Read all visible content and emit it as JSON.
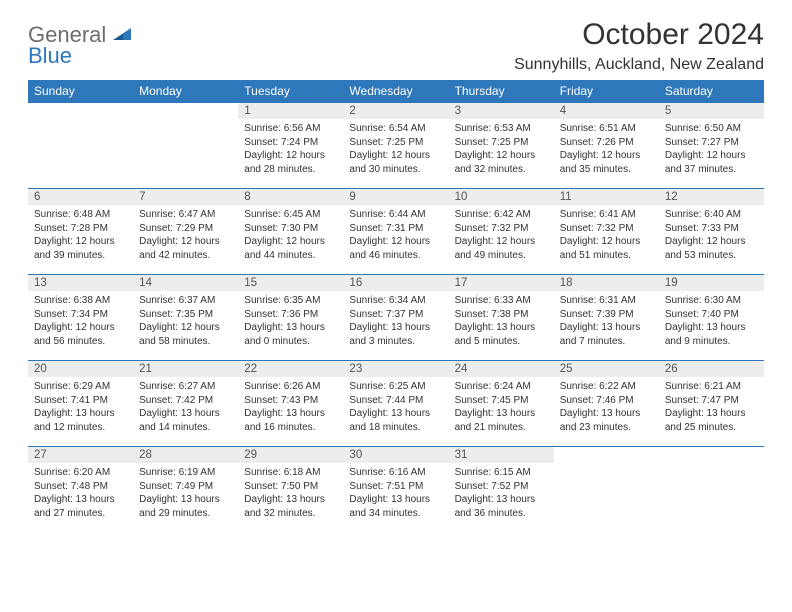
{
  "logo": {
    "general": "General",
    "blue": "Blue"
  },
  "title": "October 2024",
  "location": "Sunnyhills, Auckland, New Zealand",
  "colors": {
    "header_bg": "#2f77bb",
    "header_text": "#ffffff",
    "daynum_bg": "#ededed",
    "rule": "#2f77bb",
    "body_text": "#333333",
    "logo_gray": "#6d6d6d",
    "logo_blue": "#2f77bb",
    "page_bg": "#ffffff"
  },
  "columns": [
    "Sunday",
    "Monday",
    "Tuesday",
    "Wednesday",
    "Thursday",
    "Friday",
    "Saturday"
  ],
  "weeks": [
    [
      {
        "n": "",
        "lines": []
      },
      {
        "n": "",
        "lines": []
      },
      {
        "n": "1",
        "lines": [
          "Sunrise: 6:56 AM",
          "Sunset: 7:24 PM",
          "Daylight: 12 hours",
          "and 28 minutes."
        ]
      },
      {
        "n": "2",
        "lines": [
          "Sunrise: 6:54 AM",
          "Sunset: 7:25 PM",
          "Daylight: 12 hours",
          "and 30 minutes."
        ]
      },
      {
        "n": "3",
        "lines": [
          "Sunrise: 6:53 AM",
          "Sunset: 7:25 PM",
          "Daylight: 12 hours",
          "and 32 minutes."
        ]
      },
      {
        "n": "4",
        "lines": [
          "Sunrise: 6:51 AM",
          "Sunset: 7:26 PM",
          "Daylight: 12 hours",
          "and 35 minutes."
        ]
      },
      {
        "n": "5",
        "lines": [
          "Sunrise: 6:50 AM",
          "Sunset: 7:27 PM",
          "Daylight: 12 hours",
          "and 37 minutes."
        ]
      }
    ],
    [
      {
        "n": "6",
        "lines": [
          "Sunrise: 6:48 AM",
          "Sunset: 7:28 PM",
          "Daylight: 12 hours",
          "and 39 minutes."
        ]
      },
      {
        "n": "7",
        "lines": [
          "Sunrise: 6:47 AM",
          "Sunset: 7:29 PM",
          "Daylight: 12 hours",
          "and 42 minutes."
        ]
      },
      {
        "n": "8",
        "lines": [
          "Sunrise: 6:45 AM",
          "Sunset: 7:30 PM",
          "Daylight: 12 hours",
          "and 44 minutes."
        ]
      },
      {
        "n": "9",
        "lines": [
          "Sunrise: 6:44 AM",
          "Sunset: 7:31 PM",
          "Daylight: 12 hours",
          "and 46 minutes."
        ]
      },
      {
        "n": "10",
        "lines": [
          "Sunrise: 6:42 AM",
          "Sunset: 7:32 PM",
          "Daylight: 12 hours",
          "and 49 minutes."
        ]
      },
      {
        "n": "11",
        "lines": [
          "Sunrise: 6:41 AM",
          "Sunset: 7:32 PM",
          "Daylight: 12 hours",
          "and 51 minutes."
        ]
      },
      {
        "n": "12",
        "lines": [
          "Sunrise: 6:40 AM",
          "Sunset: 7:33 PM",
          "Daylight: 12 hours",
          "and 53 minutes."
        ]
      }
    ],
    [
      {
        "n": "13",
        "lines": [
          "Sunrise: 6:38 AM",
          "Sunset: 7:34 PM",
          "Daylight: 12 hours",
          "and 56 minutes."
        ]
      },
      {
        "n": "14",
        "lines": [
          "Sunrise: 6:37 AM",
          "Sunset: 7:35 PM",
          "Daylight: 12 hours",
          "and 58 minutes."
        ]
      },
      {
        "n": "15",
        "lines": [
          "Sunrise: 6:35 AM",
          "Sunset: 7:36 PM",
          "Daylight: 13 hours",
          "and 0 minutes."
        ]
      },
      {
        "n": "16",
        "lines": [
          "Sunrise: 6:34 AM",
          "Sunset: 7:37 PM",
          "Daylight: 13 hours",
          "and 3 minutes."
        ]
      },
      {
        "n": "17",
        "lines": [
          "Sunrise: 6:33 AM",
          "Sunset: 7:38 PM",
          "Daylight: 13 hours",
          "and 5 minutes."
        ]
      },
      {
        "n": "18",
        "lines": [
          "Sunrise: 6:31 AM",
          "Sunset: 7:39 PM",
          "Daylight: 13 hours",
          "and 7 minutes."
        ]
      },
      {
        "n": "19",
        "lines": [
          "Sunrise: 6:30 AM",
          "Sunset: 7:40 PM",
          "Daylight: 13 hours",
          "and 9 minutes."
        ]
      }
    ],
    [
      {
        "n": "20",
        "lines": [
          "Sunrise: 6:29 AM",
          "Sunset: 7:41 PM",
          "Daylight: 13 hours",
          "and 12 minutes."
        ]
      },
      {
        "n": "21",
        "lines": [
          "Sunrise: 6:27 AM",
          "Sunset: 7:42 PM",
          "Daylight: 13 hours",
          "and 14 minutes."
        ]
      },
      {
        "n": "22",
        "lines": [
          "Sunrise: 6:26 AM",
          "Sunset: 7:43 PM",
          "Daylight: 13 hours",
          "and 16 minutes."
        ]
      },
      {
        "n": "23",
        "lines": [
          "Sunrise: 6:25 AM",
          "Sunset: 7:44 PM",
          "Daylight: 13 hours",
          "and 18 minutes."
        ]
      },
      {
        "n": "24",
        "lines": [
          "Sunrise: 6:24 AM",
          "Sunset: 7:45 PM",
          "Daylight: 13 hours",
          "and 21 minutes."
        ]
      },
      {
        "n": "25",
        "lines": [
          "Sunrise: 6:22 AM",
          "Sunset: 7:46 PM",
          "Daylight: 13 hours",
          "and 23 minutes."
        ]
      },
      {
        "n": "26",
        "lines": [
          "Sunrise: 6:21 AM",
          "Sunset: 7:47 PM",
          "Daylight: 13 hours",
          "and 25 minutes."
        ]
      }
    ],
    [
      {
        "n": "27",
        "lines": [
          "Sunrise: 6:20 AM",
          "Sunset: 7:48 PM",
          "Daylight: 13 hours",
          "and 27 minutes."
        ]
      },
      {
        "n": "28",
        "lines": [
          "Sunrise: 6:19 AM",
          "Sunset: 7:49 PM",
          "Daylight: 13 hours",
          "and 29 minutes."
        ]
      },
      {
        "n": "29",
        "lines": [
          "Sunrise: 6:18 AM",
          "Sunset: 7:50 PM",
          "Daylight: 13 hours",
          "and 32 minutes."
        ]
      },
      {
        "n": "30",
        "lines": [
          "Sunrise: 6:16 AM",
          "Sunset: 7:51 PM",
          "Daylight: 13 hours",
          "and 34 minutes."
        ]
      },
      {
        "n": "31",
        "lines": [
          "Sunrise: 6:15 AM",
          "Sunset: 7:52 PM",
          "Daylight: 13 hours",
          "and 36 minutes."
        ]
      },
      {
        "n": "",
        "lines": []
      },
      {
        "n": "",
        "lines": []
      }
    ]
  ]
}
